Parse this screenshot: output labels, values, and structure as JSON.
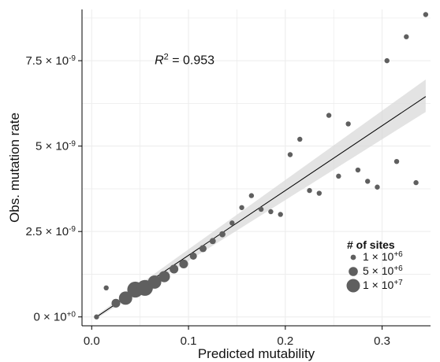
{
  "chart_data": {
    "type": "scatter",
    "title": "",
    "xlabel": "Predicted mutability",
    "ylabel": "Obs. mutation rate",
    "xlim": [
      -0.01,
      0.35
    ],
    "ylim": [
      -2.6e-10,
      9e-09
    ],
    "x_ticks": [
      0.0,
      0.1,
      0.2,
      0.3
    ],
    "x_tick_labels": [
      "0.0",
      "0.1",
      "0.2",
      "0.3"
    ],
    "y_ticks": [
      0,
      2.5e-09,
      5e-09,
      7.5e-09
    ],
    "y_tick_labels": [
      {
        "mantissa": "0",
        "exponent": "+0"
      },
      {
        "mantissa": "2.5",
        "exponent": "-9"
      },
      {
        "mantissa": "5",
        "exponent": "-9"
      },
      {
        "mantissa": "7.5",
        "exponent": "-9"
      }
    ],
    "grid": true,
    "annotation": {
      "label": "R",
      "superscript": "2",
      "value": " = 0.953",
      "x_data": 0.065,
      "y_data": 7.4e-09
    },
    "regression": {
      "x_start": 0.005,
      "x_end": 0.345,
      "y_start": 0.0,
      "y_end": 6.45e-09,
      "band_start": [
        -5e-11,
        5e-11
      ],
      "band_end": [
        6e-09,
        6.95e-09
      ]
    },
    "legend": {
      "title": "# of sites",
      "placement": "bottom-right",
      "entries": [
        {
          "mantissa": "1",
          "exponent": "+6",
          "size_value": 1000000
        },
        {
          "mantissa": "5",
          "exponent": "+6",
          "size_value": 5000000
        },
        {
          "mantissa": "1",
          "exponent": "+7",
          "size_value": 10000000
        }
      ]
    },
    "series": [
      {
        "points": [
          {
            "x": 0.005,
            "y": 0.0,
            "sites": 1000000
          },
          {
            "x": 0.015,
            "y": 8.5e-10,
            "sites": 1000000
          },
          {
            "x": 0.025,
            "y": 4e-10,
            "sites": 3000000
          },
          {
            "x": 0.035,
            "y": 5.5e-10,
            "sites": 7000000
          },
          {
            "x": 0.045,
            "y": 8e-10,
            "sites": 10000000
          },
          {
            "x": 0.055,
            "y": 8.5e-10,
            "sites": 10000000
          },
          {
            "x": 0.065,
            "y": 1.02e-09,
            "sites": 7000000
          },
          {
            "x": 0.075,
            "y": 1.18e-09,
            "sites": 5000000
          },
          {
            "x": 0.085,
            "y": 1.4e-09,
            "sites": 3000000
          },
          {
            "x": 0.095,
            "y": 1.55e-09,
            "sites": 3000000
          },
          {
            "x": 0.105,
            "y": 1.78e-09,
            "sites": 2000000
          },
          {
            "x": 0.115,
            "y": 2e-09,
            "sites": 2000000
          },
          {
            "x": 0.125,
            "y": 2.22e-09,
            "sites": 1500000
          },
          {
            "x": 0.135,
            "y": 2.42e-09,
            "sites": 1500000
          },
          {
            "x": 0.145,
            "y": 2.75e-09,
            "sites": 1000000
          },
          {
            "x": 0.155,
            "y": 3.2e-09,
            "sites": 1000000
          },
          {
            "x": 0.165,
            "y": 3.55e-09,
            "sites": 1000000
          },
          {
            "x": 0.175,
            "y": 3.15e-09,
            "sites": 1000000
          },
          {
            "x": 0.185,
            "y": 3.08e-09,
            "sites": 1000000
          },
          {
            "x": 0.195,
            "y": 3e-09,
            "sites": 1000000
          },
          {
            "x": 0.205,
            "y": 4.75e-09,
            "sites": 1000000
          },
          {
            "x": 0.215,
            "y": 5.2e-09,
            "sites": 1000000
          },
          {
            "x": 0.225,
            "y": 3.7e-09,
            "sites": 1000000
          },
          {
            "x": 0.235,
            "y": 3.62e-09,
            "sites": 1000000
          },
          {
            "x": 0.245,
            "y": 5.9e-09,
            "sites": 1000000
          },
          {
            "x": 0.255,
            "y": 4.12e-09,
            "sites": 1000000
          },
          {
            "x": 0.265,
            "y": 5.65e-09,
            "sites": 1000000
          },
          {
            "x": 0.275,
            "y": 4.3e-09,
            "sites": 1000000
          },
          {
            "x": 0.285,
            "y": 3.97e-09,
            "sites": 1000000
          },
          {
            "x": 0.295,
            "y": 3.8e-09,
            "sites": 1000000
          },
          {
            "x": 0.305,
            "y": 7.5e-09,
            "sites": 1000000
          },
          {
            "x": 0.315,
            "y": 4.55e-09,
            "sites": 1000000
          },
          {
            "x": 0.325,
            "y": 8.2e-09,
            "sites": 1000000
          },
          {
            "x": 0.335,
            "y": 3.93e-09,
            "sites": 1000000
          },
          {
            "x": 0.345,
            "y": 8.85e-09,
            "sites": 1000000
          }
        ]
      }
    ],
    "colors": {
      "point": "#5f5f5f",
      "line": "#000000",
      "band": "#d9d9d9",
      "grid": "#ececec",
      "axis": "#000000"
    }
  }
}
